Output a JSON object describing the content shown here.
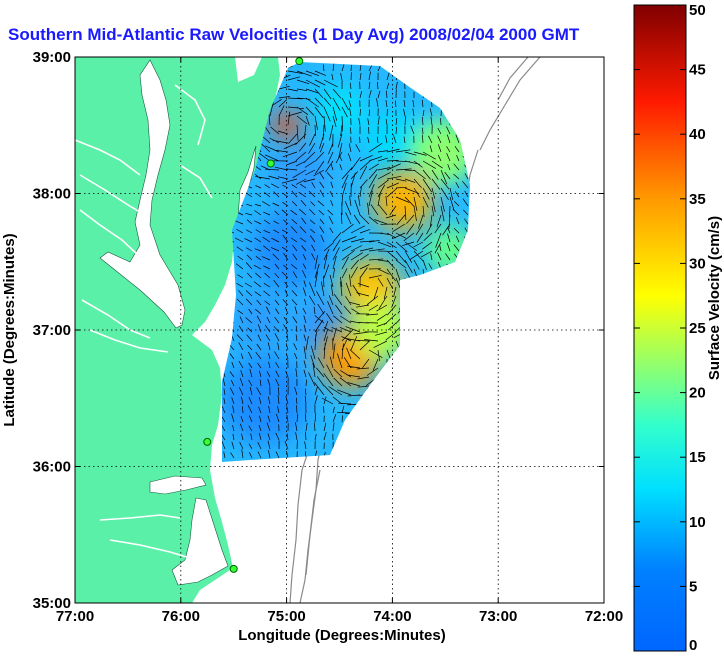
{
  "title": "Southern Mid-Atlantic Raw Velocities (1 Day Avg) 2008/02/04 2000 GMT",
  "map": {
    "xlabel": "Longitude (Degrees:Minutes)",
    "ylabel": "Latitude (Degrees:Minutes)",
    "lon_range": [
      -77,
      -72
    ],
    "lat_range": [
      35,
      39
    ],
    "x_ticks": [
      {
        "value": -77,
        "label": "77:00"
      },
      {
        "value": -76,
        "label": "76:00"
      },
      {
        "value": -75,
        "label": "75:00"
      },
      {
        "value": -74,
        "label": "74:00"
      },
      {
        "value": -73,
        "label": "73:00"
      },
      {
        "value": -72,
        "label": "72:00"
      }
    ],
    "y_ticks": [
      {
        "value": 35,
        "label": "35:00"
      },
      {
        "value": 36,
        "label": "36:00"
      },
      {
        "value": 37,
        "label": "37:00"
      },
      {
        "value": 38,
        "label": "38:00"
      },
      {
        "value": 39,
        "label": "39:00"
      }
    ],
    "grid": "dotted",
    "land_color": "#5af0a8",
    "radar_sites": [
      {
        "lon": -74.88,
        "lat": 38.97
      },
      {
        "lon": -75.15,
        "lat": 38.22
      },
      {
        "lon": -75.75,
        "lat": 36.18
      },
      {
        "lon": -75.5,
        "lat": 35.25
      }
    ]
  },
  "colorbar": {
    "label": "Surface Velocity (cm/s)",
    "min": 0,
    "max": 50,
    "ticks": [
      0,
      5,
      10,
      15,
      20,
      25,
      30,
      35,
      40,
      45,
      50
    ],
    "scale": "jet"
  },
  "speed_hotspots": [
    {
      "lon": -73.9,
      "lat": 37.95,
      "speed": 33
    },
    {
      "lon": -74.4,
      "lat": 36.8,
      "speed": 35
    },
    {
      "lon": -75.0,
      "lat": 38.5,
      "speed": 40
    },
    {
      "lon": -74.2,
      "lat": 37.3,
      "speed": 32
    },
    {
      "lon": -73.5,
      "lat": 38.3,
      "speed": 22
    },
    {
      "lon": -74.1,
      "lat": 37.0,
      "speed": 24
    }
  ]
}
